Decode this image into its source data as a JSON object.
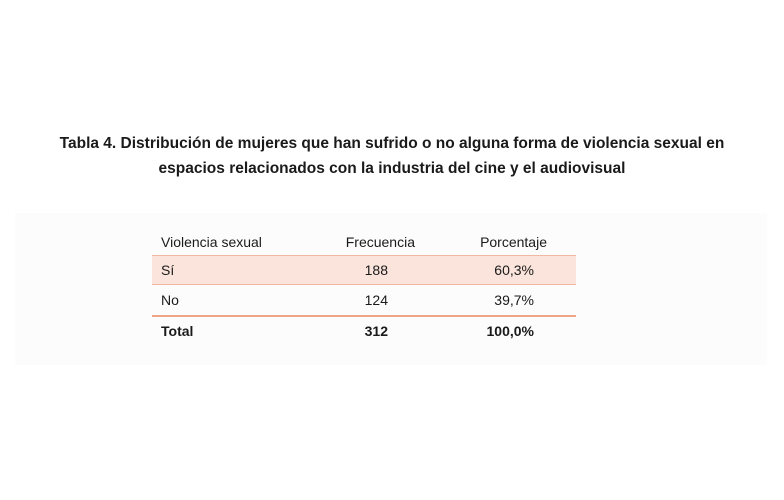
{
  "title": {
    "line1": "Tabla 4. Distribución de mujeres que han sufrido o no alguna forma de violencia sexual en",
    "line2": "espacios relacionados con la industria del cine y el audiovisual"
  },
  "table": {
    "headers": [
      "Violencia sexual",
      "Frecuencia",
      "Porcentaje"
    ],
    "rows": [
      [
        "Sí",
        "188",
        "60,3%"
      ],
      [
        "No",
        "124",
        "39,7%"
      ]
    ],
    "total": [
      "Total",
      "312",
      "100,0%"
    ]
  },
  "colors": {
    "highlight_row": "#fbe4dc",
    "rule": "#efa488"
  }
}
